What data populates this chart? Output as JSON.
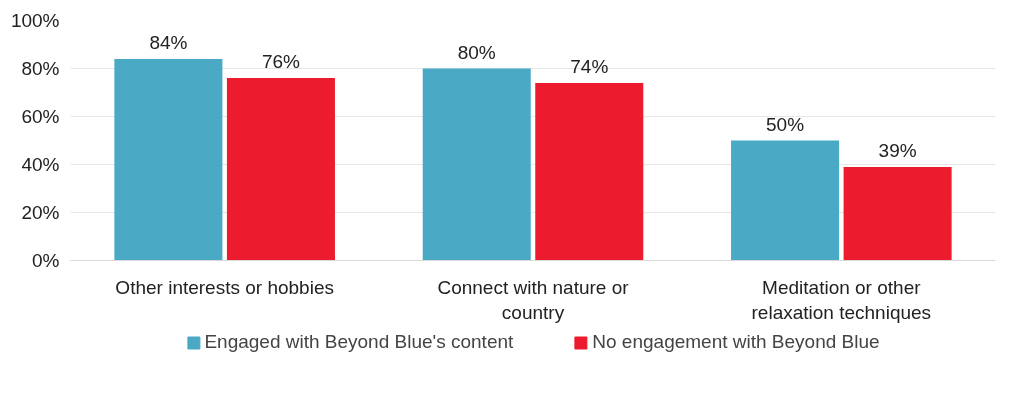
{
  "chart_data": {
    "type": "bar",
    "categories": [
      "Other interests or hobbies",
      "Connect with nature or country",
      "Meditation or other relaxation techniques"
    ],
    "series": [
      {
        "name": "Engaged with Beyond Blue's content",
        "color": "#4aa9c5",
        "values": [
          84,
          80,
          50
        ]
      },
      {
        "name": "No engagement with Beyond Blue",
        "color": "#ec1c2e",
        "values": [
          76,
          74,
          39
        ]
      }
    ],
    "ylim": [
      0,
      100
    ],
    "yticks": [
      {
        "value": 0,
        "label": "0%"
      },
      {
        "value": 20,
        "label": "20%"
      },
      {
        "value": 40,
        "label": "40%"
      },
      {
        "value": 60,
        "label": "60%"
      },
      {
        "value": 80,
        "label": "80%"
      },
      {
        "value": 100,
        "label": "100%"
      }
    ],
    "value_labels": [
      [
        "84%",
        "80%",
        "50%"
      ],
      [
        "76%",
        "74%",
        "39%"
      ]
    ],
    "grid": "y",
    "legend": "bottom"
  }
}
